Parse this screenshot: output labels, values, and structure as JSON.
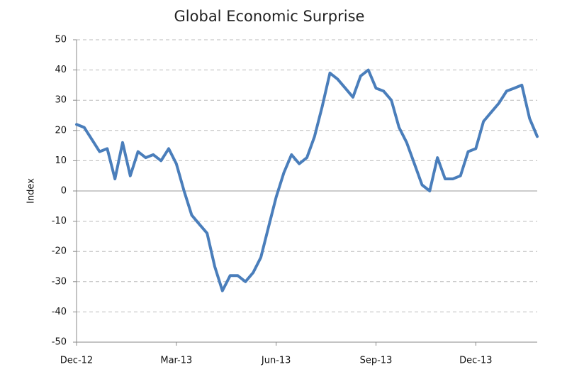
{
  "chart_data": {
    "type": "line",
    "title": "Global Economic Surprise",
    "y_label": "Index",
    "categories": [
      "Dec-12",
      null,
      null,
      null,
      null,
      null,
      null,
      null,
      null,
      null,
      null,
      null,
      null,
      "Mar-13",
      null,
      null,
      null,
      null,
      null,
      null,
      null,
      null,
      null,
      null,
      null,
      null,
      "Jun-13",
      null,
      null,
      null,
      null,
      null,
      null,
      null,
      null,
      null,
      null,
      null,
      null,
      "Sep-13",
      null,
      null,
      null,
      null,
      null,
      null,
      null,
      null,
      null,
      null,
      null,
      null,
      "Dec-13",
      null,
      null,
      null,
      null,
      null,
      null,
      null,
      null
    ],
    "series": [
      {
        "name": "Global Economic Surprise",
        "color": "#4a7ebb",
        "values": [
          22,
          21,
          17,
          13,
          14,
          4,
          16,
          5,
          13,
          11,
          12,
          10,
          14,
          9,
          0,
          -8,
          -11,
          -14,
          -25,
          -33,
          -28,
          -28,
          -30,
          -27,
          -22,
          -12,
          -2,
          6,
          12,
          9,
          11,
          18,
          28,
          39,
          37,
          34,
          31,
          38,
          40,
          34,
          33,
          30,
          21,
          16,
          9,
          2,
          0,
          11,
          4,
          4,
          5,
          13,
          14,
          23,
          26,
          29,
          33,
          34,
          35,
          24,
          18
        ]
      }
    ],
    "ylim": [
      -50,
      50
    ],
    "yticks": [
      -50,
      -40,
      -30,
      -20,
      -10,
      0,
      10,
      20,
      30,
      40,
      50
    ],
    "grid": true
  }
}
